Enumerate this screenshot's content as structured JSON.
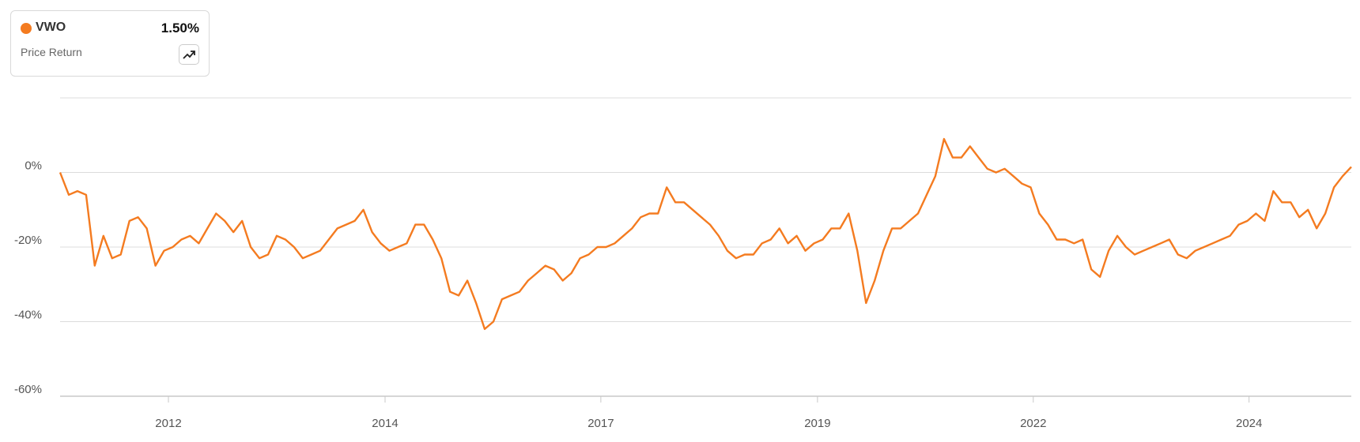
{
  "chart_data": {
    "type": "line",
    "series": [
      {
        "name": "VWO",
        "color": "#f47b20",
        "values": [
          0,
          -6,
          -5,
          -6,
          -25,
          -17,
          -23,
          -22,
          -13,
          -12,
          -15,
          -25,
          -21,
          -20,
          -18,
          -17,
          -19,
          -15,
          -11,
          -13,
          -16,
          -13,
          -20,
          -23,
          -22,
          -17,
          -18,
          -20,
          -23,
          -22,
          -21,
          -18,
          -15,
          -14,
          -13,
          -10,
          -16,
          -19,
          -21,
          -20,
          -19,
          -14,
          -14,
          -18,
          -23,
          -32,
          -33,
          -29,
          -35,
          -42,
          -40,
          -34,
          -33,
          -32,
          -29,
          -27,
          -25,
          -26,
          -29,
          -27,
          -23,
          -22,
          -20,
          -20,
          -19,
          -17,
          -15,
          -12,
          -11,
          -11,
          -4,
          -8,
          -8,
          -10,
          -12,
          -14,
          -17,
          -21,
          -23,
          -22,
          -22,
          -19,
          -18,
          -15,
          -19,
          -17,
          -21,
          -19,
          -18,
          -15,
          -15,
          -11,
          -21,
          -35,
          -29,
          -21,
          -15,
          -15,
          -13,
          -11,
          -6,
          -1,
          9,
          4,
          4,
          7,
          4,
          1,
          0,
          1,
          -1,
          -3,
          -4,
          -11,
          -14,
          -18,
          -18,
          -19,
          -18,
          -26,
          -28,
          -21,
          -17,
          -20,
          -22,
          -21,
          -20,
          -19,
          -18,
          -22,
          -23,
          -21,
          -20,
          -19,
          -18,
          -17,
          -14,
          -13,
          -11,
          -13,
          -5,
          -8,
          -8,
          -12,
          -10,
          -15,
          -11,
          -4,
          -1,
          1.5
        ]
      }
    ],
    "legend_value": "1.50%",
    "legend_subtitle": "Price Return",
    "xlim": [
      0,
      149
    ],
    "xticks": [
      {
        "value": 12.5,
        "label": "2012"
      },
      {
        "value": 37.5,
        "label": "2014"
      },
      {
        "value": 62.4,
        "label": "2017"
      },
      {
        "value": 87.4,
        "label": "2019"
      },
      {
        "value": 112.3,
        "label": "2022"
      },
      {
        "value": 137.2,
        "label": "2024"
      }
    ],
    "ylim": [
      -60,
      20
    ],
    "yticks": [
      {
        "value": -60,
        "label": "-60%"
      },
      {
        "value": -40,
        "label": "-40%"
      },
      {
        "value": -20,
        "label": "-20%"
      },
      {
        "value": 0,
        "label": "0%"
      }
    ],
    "grid": true
  }
}
